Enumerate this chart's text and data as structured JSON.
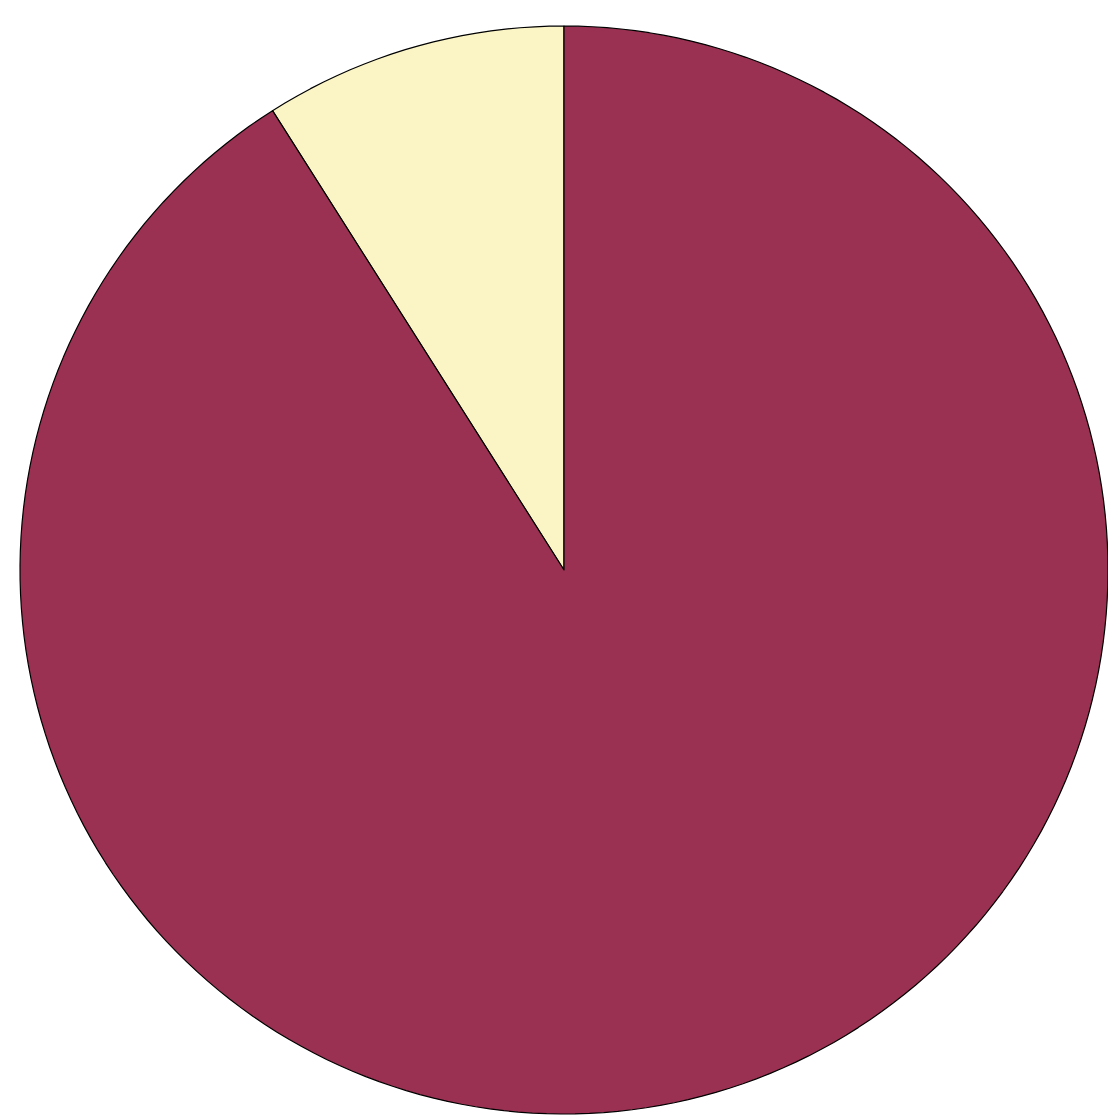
{
  "chart_data": {
    "type": "pie",
    "categories": [
      null,
      null
    ],
    "values": [
      9,
      91
    ],
    "colors": [
      "#fbf5c6",
      "#9a3152"
    ]
  }
}
